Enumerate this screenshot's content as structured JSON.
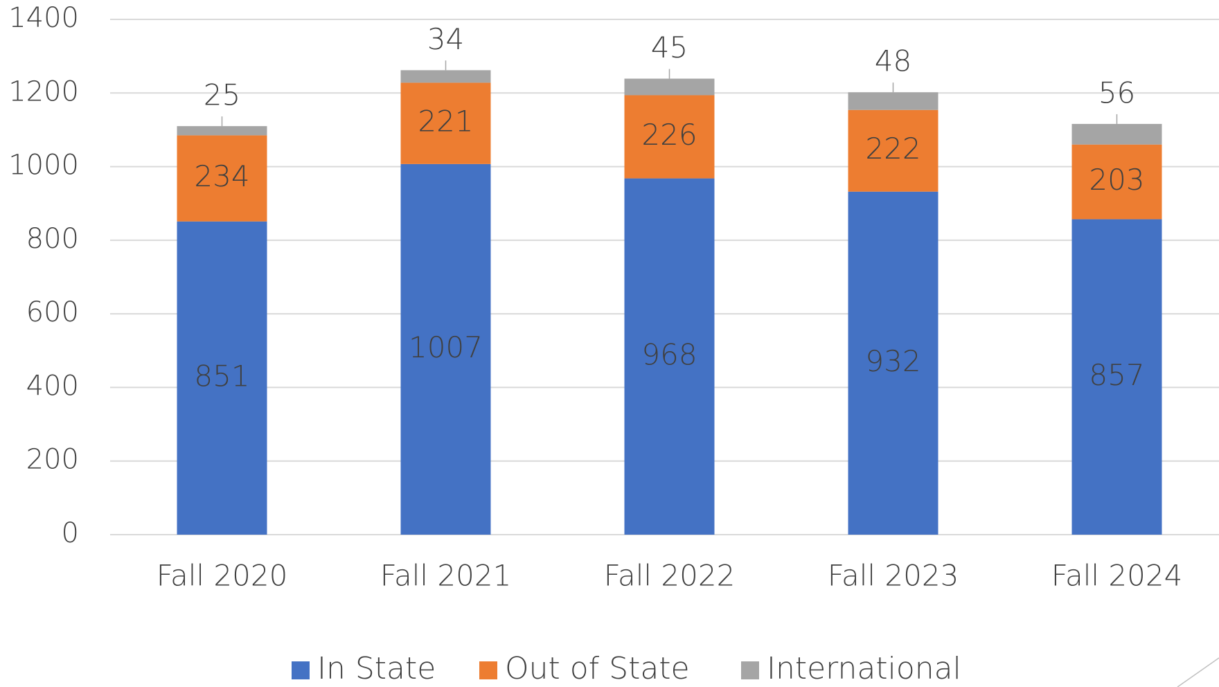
{
  "chart_data": {
    "type": "stacked_bar",
    "categories": [
      "Fall 2020",
      "Fall 2021",
      "Fall 2022",
      "Fall 2023",
      "Fall 2024"
    ],
    "series": [
      {
        "name": "In State",
        "color": "#4472c4",
        "values": [
          851,
          1007,
          968,
          932,
          857
        ]
      },
      {
        "name": "Out of State",
        "color": "#ed7d31",
        "values": [
          234,
          221,
          226,
          222,
          203
        ]
      },
      {
        "name": "International",
        "color": "#a5a5a5",
        "values": [
          25,
          34,
          45,
          48,
          56
        ]
      }
    ],
    "ylim": [
      0,
      1400
    ],
    "yticks": [
      0,
      200,
      400,
      600,
      800,
      1000,
      1200,
      1400
    ],
    "grid": true,
    "legend": "bottom"
  }
}
